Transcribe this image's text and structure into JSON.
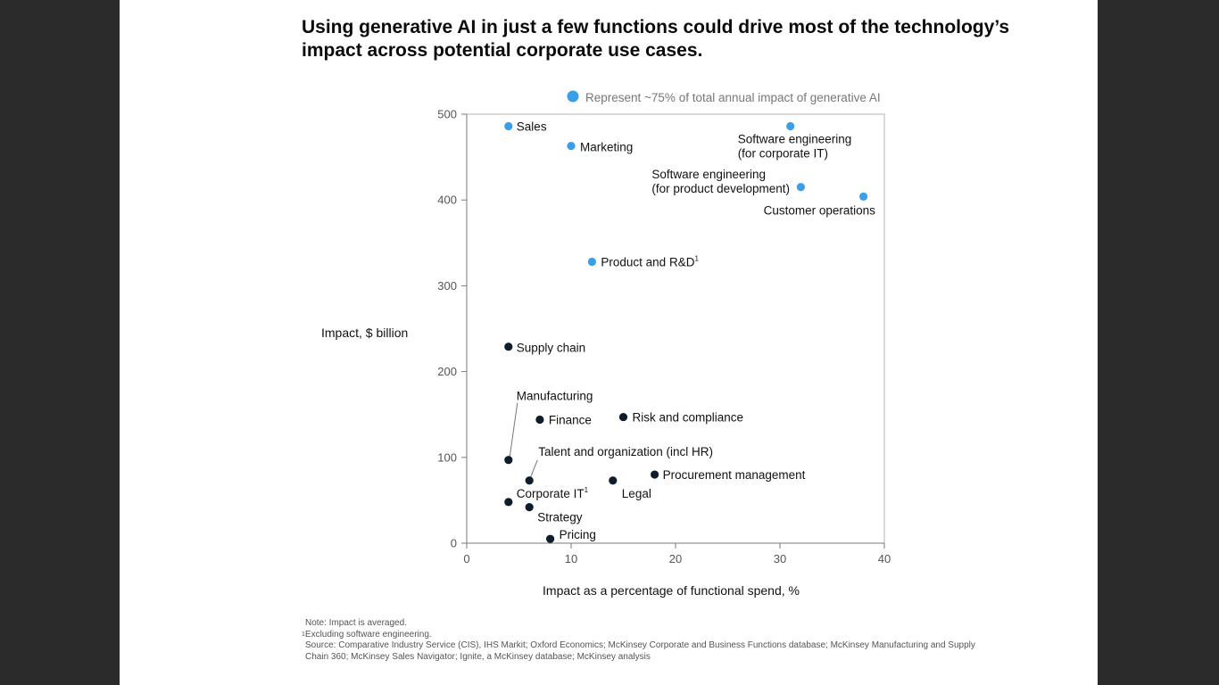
{
  "title": "Using generative AI in just a few functions could drive most of the technology’s impact across potential corporate use cases.",
  "colors": {
    "highlight": "#3a9fea",
    "other": "#0e1c2b",
    "axis": "#9a9a9a"
  },
  "chart_data": {
    "type": "scatter",
    "xlabel": "Impact as a percentage of functional spend, %",
    "ylabel_bold": "Impact,",
    "ylabel_rest": " $ billion",
    "xlim": [
      0,
      40
    ],
    "ylim": [
      0,
      500
    ],
    "xticks": [
      0,
      10,
      20,
      30,
      40
    ],
    "yticks": [
      0,
      100,
      200,
      300,
      400,
      500
    ],
    "legend": {
      "label": "Represent ~75% of total annual impact of generative AI",
      "placement": "top"
    },
    "points": [
      {
        "label": "Sales",
        "x": 4,
        "y": 486,
        "highlight": true
      },
      {
        "label": "Marketing",
        "x": 10,
        "y": 463,
        "highlight": true
      },
      {
        "label": "Software engineering",
        "label2": "(for corporate IT)",
        "x": 31,
        "y": 486,
        "highlight": true
      },
      {
        "label": "Software engineering",
        "label2": "(for product development)",
        "x": 32,
        "y": 415,
        "highlight": true
      },
      {
        "label": "Customer operations",
        "x": 38,
        "y": 404,
        "highlight": true
      },
      {
        "label": "Product and R&D",
        "sup": "1",
        "x": 12,
        "y": 328,
        "highlight": true
      },
      {
        "label": "Supply chain",
        "x": 4,
        "y": 229,
        "highlight": false
      },
      {
        "label": "Manufacturing",
        "x": 4,
        "y": 97,
        "highlight": false
      },
      {
        "label": "Finance",
        "x": 7,
        "y": 144,
        "highlight": false
      },
      {
        "label": "Risk and compliance",
        "x": 15,
        "y": 147,
        "highlight": false
      },
      {
        "label": "Talent and organization (incl HR)",
        "x": 6,
        "y": 73,
        "highlight": false
      },
      {
        "label": "Legal",
        "x": 14,
        "y": 73,
        "highlight": false
      },
      {
        "label": "Procurement management",
        "x": 18,
        "y": 80,
        "highlight": false
      },
      {
        "label": "Corporate IT",
        "sup": "1",
        "x": 4,
        "y": 48,
        "highlight": false
      },
      {
        "label": "Strategy",
        "x": 6,
        "y": 42,
        "highlight": false
      },
      {
        "label": "Pricing",
        "x": 8,
        "y": 5,
        "highlight": false
      }
    ]
  },
  "notes": {
    "note": "Note: Impact is averaged.",
    "footnote_sup": "1",
    "footnote": "Excluding software engineering.",
    "source": "Source: Comparative Industry Service (CIS), IHS Markit; Oxford Economics; McKinsey Corporate and Business Functions database; McKinsey Manufacturing and Supply Chain 360; McKinsey Sales Navigator; Ignite, a McKinsey database; McKinsey analysis"
  }
}
